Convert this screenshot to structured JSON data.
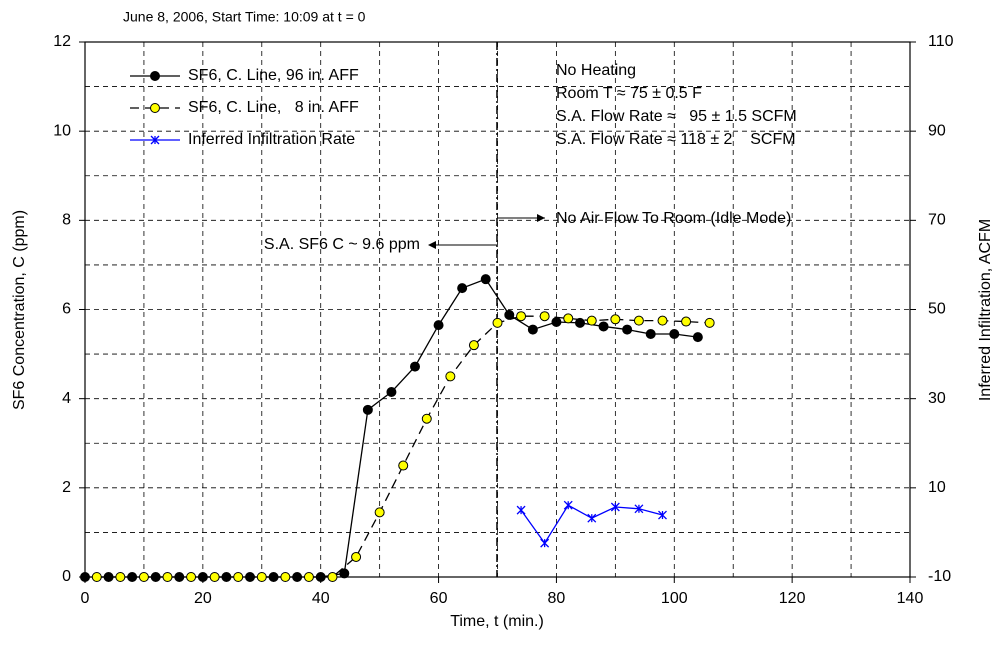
{
  "chart_data": {
    "type": "line",
    "title": "June 8, 2006, Start Time: 10:09 at t = 0",
    "x_label": "Time, t (min.)",
    "y_label": "SF6 Concentration, C (ppm)",
    "y2_label": "Inferred Infiltration, ACFM",
    "xlim": [
      0,
      140
    ],
    "xticks": [
      0,
      20,
      40,
      60,
      80,
      100,
      120,
      140
    ],
    "ylim": [
      0,
      12
    ],
    "yticks": [
      0,
      2,
      4,
      6,
      8,
      10,
      12
    ],
    "y2lim": [
      -10,
      110
    ],
    "y2ticks": [
      -10,
      10,
      30,
      50,
      70,
      90,
      110
    ],
    "grid": true,
    "legend": "upper left",
    "series": [
      {
        "name": "SF6, C. Line, 96 in. AFF",
        "color": "#000000",
        "marker": "filled-circle",
        "dash": "solid",
        "x": [
          0,
          4,
          8,
          12,
          16,
          20,
          24,
          28,
          32,
          36,
          40,
          44,
          48,
          52,
          56,
          60,
          64,
          68,
          72,
          76,
          80,
          84,
          88,
          92,
          96,
          100,
          104
        ],
        "values": [
          0,
          0,
          0,
          0,
          0,
          0,
          0,
          0,
          0,
          0,
          0,
          0.08,
          3.75,
          4.15,
          4.72,
          5.65,
          6.48,
          6.68,
          5.88,
          5.55,
          5.72,
          5.7,
          5.62,
          5.55,
          5.45,
          5.45,
          5.38
        ]
      },
      {
        "name": "SF6, C. Line,   8 in. AFF",
        "color": "#ffff00",
        "marker": "open-circle",
        "dash": "dashed",
        "x": [
          2,
          6,
          10,
          14,
          18,
          22,
          26,
          30,
          34,
          38,
          42,
          46,
          50,
          54,
          58,
          62,
          66,
          70,
          74,
          78,
          82,
          86,
          90,
          94,
          98,
          102,
          106
        ],
        "values": [
          0,
          0,
          0,
          0,
          0,
          0,
          0,
          0,
          0,
          0,
          0,
          0.45,
          1.45,
          2.5,
          3.55,
          4.5,
          5.2,
          5.7,
          5.85,
          5.85,
          5.8,
          5.75,
          5.78,
          5.75,
          5.75,
          5.73,
          5.7
        ]
      },
      {
        "name": "Inferred Infiltration Rate",
        "color": "#0000ff",
        "marker": "asterisk",
        "dash": "solid",
        "axis": "y2",
        "x": [
          74,
          78,
          82,
          86,
          90,
          94,
          98
        ],
        "values": [
          5.0,
          -2.4,
          6.1,
          3.2,
          5.7,
          5.3,
          3.9
        ]
      }
    ],
    "annotations": {
      "box": [
        "No Heating",
        "Room T ≈ 75 ± 0.5 F",
        "S.A. Flow Rate ≈   95 ± 1.5 SCFM",
        "S.A. Flow Rate ≈ 118 ± 2    SCFM"
      ],
      "right_arrow": "No Air Flow To Room (Idle Mode)",
      "left_arrow": "S.A. SF6 C ~ 9.6 ppm"
    }
  }
}
